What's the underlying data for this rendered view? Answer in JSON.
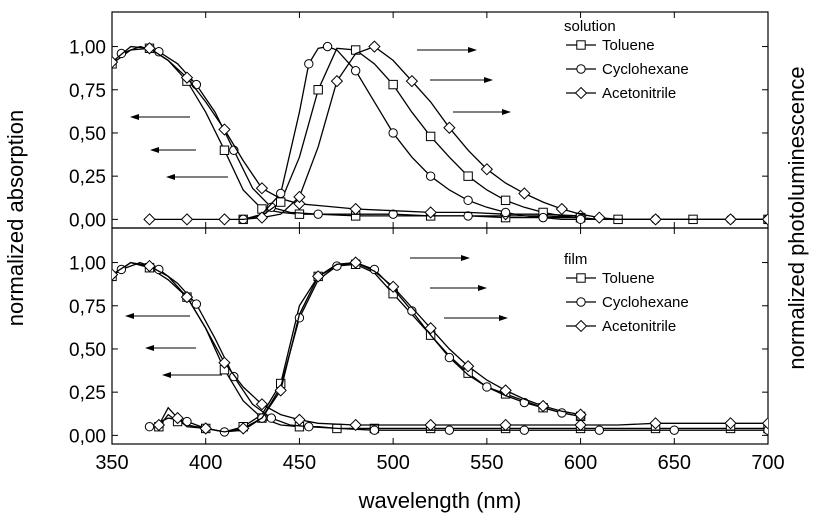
{
  "chart_data": [
    {
      "type": "line",
      "panel": "top",
      "legend_title": "solution",
      "legend_position": "top-right",
      "xlabel": "wavelength (nm)",
      "ylabel_left": "normalized absorption",
      "ylabel_right": "normalized photoluminescence",
      "xlim": [
        350,
        700
      ],
      "ylim": [
        -0.05,
        1.2
      ],
      "grid": false,
      "x_ticks": [
        "350",
        "400",
        "450",
        "500",
        "550",
        "600",
        "650",
        "700"
      ],
      "y_ticks": [
        "0,00",
        "0,25",
        "0,50",
        "0,75",
        "1,00"
      ],
      "series": [
        {
          "name": "Toluene",
          "marker": "square",
          "kind": "absorption",
          "x": [
            350,
            360,
            370,
            380,
            390,
            400,
            410,
            420,
            430,
            440,
            450,
            460,
            480,
            500,
            520,
            540,
            560,
            580,
            600
          ],
          "y": [
            0.9,
            0.98,
            0.99,
            0.92,
            0.8,
            0.62,
            0.4,
            0.17,
            0.06,
            0.04,
            0.03,
            0.03,
            0.02,
            0.02,
            0.02,
            0.02,
            0.01,
            0.01,
            0.01
          ]
        },
        {
          "name": "Cyclohexane",
          "marker": "circle",
          "kind": "absorption",
          "x": [
            355,
            365,
            375,
            385,
            395,
            405,
            415,
            425,
            435,
            445,
            460,
            480,
            500,
            520,
            540,
            560,
            580,
            600
          ],
          "y": [
            0.96,
            1.0,
            0.97,
            0.9,
            0.78,
            0.62,
            0.4,
            0.18,
            0.07,
            0.04,
            0.03,
            0.03,
            0.03,
            0.02,
            0.02,
            0.02,
            0.02,
            0.01
          ]
        },
        {
          "name": "Acetonitrile",
          "marker": "diamond",
          "kind": "absorption",
          "x": [
            350,
            360,
            370,
            380,
            390,
            400,
            410,
            420,
            430,
            440,
            450,
            460,
            480,
            500,
            520,
            540,
            560,
            580,
            600
          ],
          "y": [
            0.91,
            1.0,
            0.99,
            0.92,
            0.82,
            0.68,
            0.52,
            0.34,
            0.18,
            0.12,
            0.09,
            0.08,
            0.06,
            0.05,
            0.04,
            0.04,
            0.03,
            0.03,
            0.02
          ]
        },
        {
          "name": "Toluene",
          "marker": "square",
          "kind": "photoluminescence",
          "x": [
            420,
            430,
            440,
            450,
            460,
            470,
            480,
            490,
            500,
            510,
            520,
            530,
            540,
            550,
            560,
            570,
            580,
            590,
            600,
            610,
            620,
            640,
            660,
            680,
            700
          ],
          "y": [
            0.0,
            0.02,
            0.1,
            0.36,
            0.75,
            0.99,
            0.98,
            0.9,
            0.78,
            0.62,
            0.48,
            0.36,
            0.25,
            0.17,
            0.11,
            0.07,
            0.04,
            0.02,
            0.01,
            0.0,
            0.0,
            0.0,
            0.0,
            0.0,
            0.0
          ]
        },
        {
          "name": "Cyclohexane",
          "marker": "circle",
          "kind": "photoluminescence",
          "x": [
            420,
            430,
            440,
            450,
            455,
            460,
            465,
            470,
            480,
            490,
            500,
            510,
            520,
            530,
            540,
            550,
            560,
            570,
            580,
            590,
            600,
            620,
            640,
            660,
            680,
            700
          ],
          "y": [
            0.0,
            0.03,
            0.15,
            0.62,
            0.9,
            0.99,
            1.0,
            0.98,
            0.86,
            0.68,
            0.5,
            0.36,
            0.25,
            0.17,
            0.11,
            0.07,
            0.04,
            0.02,
            0.01,
            0.0,
            0.0,
            0.0,
            0.0,
            0.0,
            0.0,
            0.0
          ]
        },
        {
          "name": "Acetonitrile",
          "marker": "diamond",
          "kind": "photoluminescence",
          "x": [
            370,
            380,
            390,
            400,
            410,
            420,
            430,
            440,
            450,
            460,
            470,
            480,
            490,
            500,
            510,
            520,
            530,
            540,
            550,
            560,
            570,
            580,
            590,
            600,
            610,
            620,
            640,
            660,
            680,
            700
          ],
          "y": [
            0.0,
            0.0,
            0.0,
            0.0,
            0.0,
            0.0,
            0.01,
            0.03,
            0.13,
            0.42,
            0.8,
            0.96,
            1.0,
            0.92,
            0.8,
            0.68,
            0.53,
            0.4,
            0.29,
            0.21,
            0.15,
            0.1,
            0.06,
            0.03,
            0.01,
            0.0,
            0.0,
            0.0,
            0.0,
            0.0
          ]
        }
      ]
    },
    {
      "type": "line",
      "panel": "bottom",
      "legend_title": "film",
      "legend_position": "top-right",
      "xlabel": "wavelength (nm)",
      "ylabel_left": "normalized absorption",
      "ylabel_right": "normalized photoluminescence",
      "xlim": [
        350,
        700
      ],
      "ylim": [
        -0.05,
        1.2
      ],
      "grid": false,
      "x_ticks": [
        "350",
        "400",
        "450",
        "500",
        "550",
        "600",
        "650",
        "700"
      ],
      "y_ticks": [
        "0,00",
        "0,25",
        "0,50",
        "0,75",
        "1,00"
      ],
      "series": [
        {
          "name": "Toluene",
          "marker": "square",
          "kind": "absorption",
          "x": [
            350,
            360,
            370,
            380,
            390,
            400,
            410,
            420,
            430,
            440,
            450,
            460,
            470,
            480,
            490,
            500,
            520,
            540,
            560,
            580,
            600,
            620,
            640,
            660,
            680,
            700
          ],
          "y": [
            0.92,
            1.0,
            0.97,
            0.9,
            0.8,
            0.62,
            0.38,
            0.2,
            0.1,
            0.06,
            0.05,
            0.05,
            0.04,
            0.04,
            0.04,
            0.04,
            0.04,
            0.04,
            0.04,
            0.04,
            0.04,
            0.04,
            0.04,
            0.04,
            0.04,
            0.04
          ]
        },
        {
          "name": "Cyclohexane",
          "marker": "circle",
          "kind": "absorption",
          "x": [
            355,
            365,
            375,
            385,
            395,
            405,
            415,
            425,
            435,
            445,
            455,
            470,
            490,
            510,
            530,
            550,
            570,
            590,
            610,
            630,
            650,
            670,
            700
          ],
          "y": [
            0.96,
            1.0,
            0.96,
            0.88,
            0.76,
            0.56,
            0.34,
            0.18,
            0.1,
            0.06,
            0.05,
            0.04,
            0.03,
            0.03,
            0.03,
            0.03,
            0.03,
            0.03,
            0.03,
            0.03,
            0.03,
            0.03,
            0.03
          ]
        },
        {
          "name": "Acetonitrile",
          "marker": "diamond",
          "kind": "absorption",
          "x": [
            350,
            360,
            370,
            380,
            390,
            400,
            410,
            420,
            430,
            440,
            450,
            460,
            480,
            500,
            520,
            540,
            560,
            580,
            600,
            620,
            640,
            660,
            680,
            700
          ],
          "y": [
            0.93,
            1.0,
            0.98,
            0.92,
            0.8,
            0.62,
            0.42,
            0.28,
            0.18,
            0.12,
            0.09,
            0.07,
            0.06,
            0.06,
            0.06,
            0.06,
            0.06,
            0.06,
            0.06,
            0.06,
            0.07,
            0.07,
            0.07,
            0.07
          ]
        },
        {
          "name": "Toluene",
          "marker": "square",
          "kind": "photoluminescence",
          "x": [
            375,
            380,
            385,
            390,
            400,
            410,
            420,
            430,
            440,
            450,
            460,
            470,
            480,
            490,
            500,
            510,
            520,
            530,
            540,
            550,
            560,
            570,
            580,
            590,
            600
          ],
          "y": [
            0.05,
            0.12,
            0.08,
            0.06,
            0.04,
            0.02,
            0.05,
            0.12,
            0.3,
            0.75,
            0.92,
            0.98,
            0.99,
            0.94,
            0.82,
            0.7,
            0.58,
            0.46,
            0.36,
            0.28,
            0.24,
            0.2,
            0.16,
            0.13,
            0.11
          ]
        },
        {
          "name": "Cyclohexane",
          "marker": "circle",
          "kind": "photoluminescence",
          "x": [
            370,
            380,
            390,
            400,
            410,
            420,
            430,
            440,
            450,
            460,
            470,
            480,
            490,
            500,
            510,
            520,
            530,
            540,
            550,
            560,
            570,
            580,
            590,
            600
          ],
          "y": [
            0.05,
            0.1,
            0.08,
            0.04,
            0.02,
            0.03,
            0.1,
            0.28,
            0.68,
            0.9,
            0.98,
            1.0,
            0.96,
            0.85,
            0.72,
            0.58,
            0.45,
            0.35,
            0.28,
            0.23,
            0.19,
            0.16,
            0.13,
            0.11
          ]
        },
        {
          "name": "Acetonitrile",
          "marker": "diamond",
          "kind": "photoluminescence",
          "x": [
            375,
            380,
            385,
            390,
            400,
            410,
            420,
            430,
            440,
            450,
            460,
            470,
            480,
            490,
            500,
            510,
            520,
            530,
            540,
            550,
            560,
            570,
            580,
            590,
            600
          ],
          "y": [
            0.06,
            0.16,
            0.1,
            0.05,
            0.04,
            0.02,
            0.04,
            0.1,
            0.26,
            0.7,
            0.92,
            0.99,
            1.0,
            0.95,
            0.86,
            0.74,
            0.62,
            0.5,
            0.4,
            0.32,
            0.26,
            0.21,
            0.17,
            0.14,
            0.12
          ]
        }
      ]
    }
  ]
}
